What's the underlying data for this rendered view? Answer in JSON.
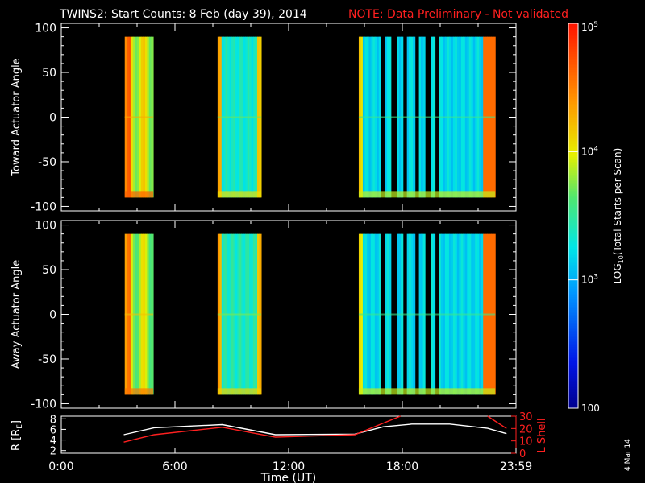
{
  "header": {
    "title": "TWINS2: Start Counts:  8 Feb (day  39), 2014",
    "note": "NOTE: Data Preliminary - Not validated",
    "note_color": "#ff2020"
  },
  "side_stamp": "4 Mar 14",
  "colors": {
    "background": "#000000",
    "axes": "#ffffff",
    "orbit_r": "#ffffff",
    "orbit_l": "#ff2020"
  },
  "chart_data": [
    {
      "type": "heatmap",
      "id": "toward",
      "ylabel": "Toward Actuator Angle",
      "ylim": [
        -105,
        105
      ],
      "yticks": [
        -100,
        -50,
        0,
        50,
        100
      ],
      "xlim": [
        0,
        24
      ],
      "xticks": [
        "0:00",
        "6:00",
        "12:00",
        "18:00",
        "23:59"
      ],
      "angle_range": [
        -90,
        90
      ],
      "data_blocks": [
        {
          "start": 3.35,
          "end": 4.85,
          "log_level": 3.95
        },
        {
          "start": 8.25,
          "end": 10.55,
          "log_level": 3.35
        },
        {
          "start": 15.7,
          "end": 22.9,
          "log_level": 3.2
        }
      ],
      "gaps": [
        17.0,
        17.55,
        18.1,
        18.75,
        19.35,
        19.85
      ]
    },
    {
      "type": "heatmap",
      "id": "away",
      "ylabel": "Away Actuator Angle",
      "ylim": [
        -105,
        105
      ],
      "yticks": [
        -100,
        -50,
        0,
        50,
        100
      ],
      "xlim": [
        0,
        24
      ],
      "xticks": [
        "0:00",
        "6:00",
        "12:00",
        "18:00",
        "23:59"
      ],
      "angle_range": [
        -90,
        90
      ],
      "data_blocks": [
        {
          "start": 3.35,
          "end": 4.85,
          "log_level": 3.85
        },
        {
          "start": 8.25,
          "end": 10.55,
          "log_level": 3.4
        },
        {
          "start": 15.7,
          "end": 22.9,
          "log_level": 3.2
        }
      ],
      "gaps": [
        17.0,
        17.55,
        18.1,
        18.75,
        19.35,
        19.85
      ]
    },
    {
      "type": "line",
      "id": "orbit",
      "xlabel": "Time (UT)",
      "ylabel_left": "R [R",
      "ylabel_left_sub": "E",
      "ylabel_left_close": "]",
      "ylabel_right": "L Shell",
      "ylim_left": [
        1.5,
        8.5
      ],
      "yticks_left": [
        2,
        4,
        6,
        8
      ],
      "ylim_right": [
        0,
        30
      ],
      "yticks_right": [
        0,
        10,
        20,
        30
      ],
      "xlim": [
        0,
        24
      ],
      "xticks": [
        "0:00",
        "6:00",
        "12:00",
        "18:00",
        "23:59"
      ],
      "series": [
        {
          "axis": "left",
          "color": "#ffffff",
          "x": [
            3.3,
            4.9,
            8.5,
            11.3,
            15.5,
            17.0,
            18.5,
            20.5,
            22.5,
            23.5
          ],
          "y": [
            5.0,
            6.3,
            6.9,
            5.0,
            5.1,
            6.5,
            7.0,
            7.0,
            6.2,
            5.2
          ]
        },
        {
          "axis": "right",
          "color": "#ff2020",
          "x": [
            3.3,
            4.9,
            8.5,
            11.3,
            15.5,
            17.9
          ],
          "y": [
            9,
            15,
            21,
            13,
            15,
            30
          ]
        },
        {
          "axis": "right",
          "color": "#ff2020",
          "x": [
            22.5,
            23.5
          ],
          "y": [
            30,
            20
          ]
        }
      ]
    }
  ],
  "colorbar": {
    "label_main": "LOG",
    "label_sub": "10",
    "label_rest": "(Total Starts per Scan)",
    "ticks": [
      {
        "base": "10",
        "exp": "5"
      },
      {
        "base": "10",
        "exp": "4"
      },
      {
        "base": "10",
        "exp": "3"
      },
      {
        "base": "100",
        "exp": ""
      }
    ],
    "log_range": [
      2,
      5
    ]
  }
}
